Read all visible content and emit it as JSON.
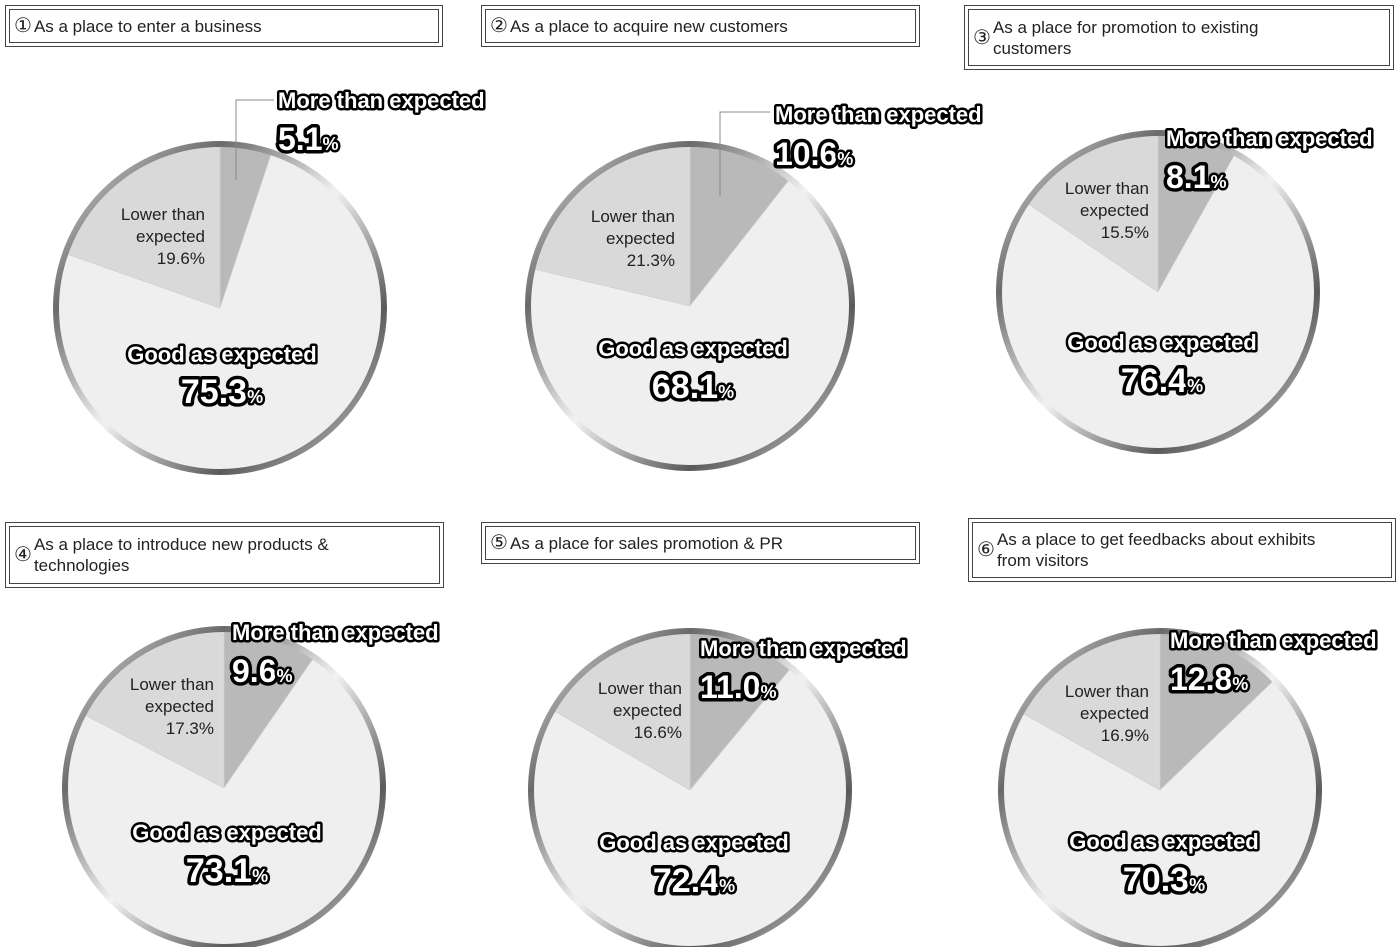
{
  "colors": {
    "more": "#b9b9b9",
    "lower": "#d9d9d9",
    "good": "#efefef"
  },
  "chart_data": [
    {
      "type": "pie",
      "number": "①",
      "title": "As a place to enter a business",
      "slices": [
        {
          "label": "More than expected",
          "value": 5.1,
          "display": "5.1",
          "unit": "%"
        },
        {
          "label": "Good as expected",
          "value": 75.3,
          "display": "75.3",
          "unit": "%"
        },
        {
          "label": "Lower than\nexpected",
          "value": 19.6,
          "display": "19.6%"
        }
      ]
    },
    {
      "type": "pie",
      "number": "②",
      "title": "As a place to acquire new customers",
      "slices": [
        {
          "label": "More than expected",
          "value": 10.6,
          "display": "10.6",
          "unit": "%"
        },
        {
          "label": "Good as expected",
          "value": 68.1,
          "display": "68.1",
          "unit": "%"
        },
        {
          "label": "Lower than\nexpected",
          "value": 21.3,
          "display": "21.3%"
        }
      ]
    },
    {
      "type": "pie",
      "number": "③",
      "title": "As a place for promotion to existing\ncustomers",
      "slices": [
        {
          "label": "More than expected",
          "value": 8.1,
          "display": "8.1",
          "unit": "%"
        },
        {
          "label": "Good as expected",
          "value": 76.4,
          "display": "76.4",
          "unit": "%"
        },
        {
          "label": "Lower than\nexpected",
          "value": 15.5,
          "display": "15.5%"
        }
      ]
    },
    {
      "type": "pie",
      "number": "④",
      "title": "As a place to introduce new products &\ntechnologies",
      "slices": [
        {
          "label": "More than expected",
          "value": 9.6,
          "display": "9.6",
          "unit": "%"
        },
        {
          "label": "Good as expected",
          "value": 73.1,
          "display": "73.1",
          "unit": "%"
        },
        {
          "label": "Lower than\nexpected",
          "value": 17.3,
          "display": "17.3%"
        }
      ]
    },
    {
      "type": "pie",
      "number": "⑤",
      "title": "As a place for sales promotion & PR",
      "slices": [
        {
          "label": "More than expected",
          "value": 11.0,
          "display": "11.0",
          "unit": "%"
        },
        {
          "label": "Good as expected",
          "value": 72.4,
          "display": "72.4",
          "unit": "%"
        },
        {
          "label": "Lower than\nexpected",
          "value": 16.6,
          "display": "16.6%"
        }
      ]
    },
    {
      "type": "pie",
      "number": "⑥",
      "title": "As a place to get feedbacks about exhibits\nfrom visitors",
      "slices": [
        {
          "label": "More than expected",
          "value": 12.8,
          "display": "12.8",
          "unit": "%"
        },
        {
          "label": "Good as expected",
          "value": 70.3,
          "display": "70.3",
          "unit": "%"
        },
        {
          "label": "Lower than\nexpected",
          "value": 16.9,
          "display": "16.9%"
        }
      ]
    }
  ]
}
